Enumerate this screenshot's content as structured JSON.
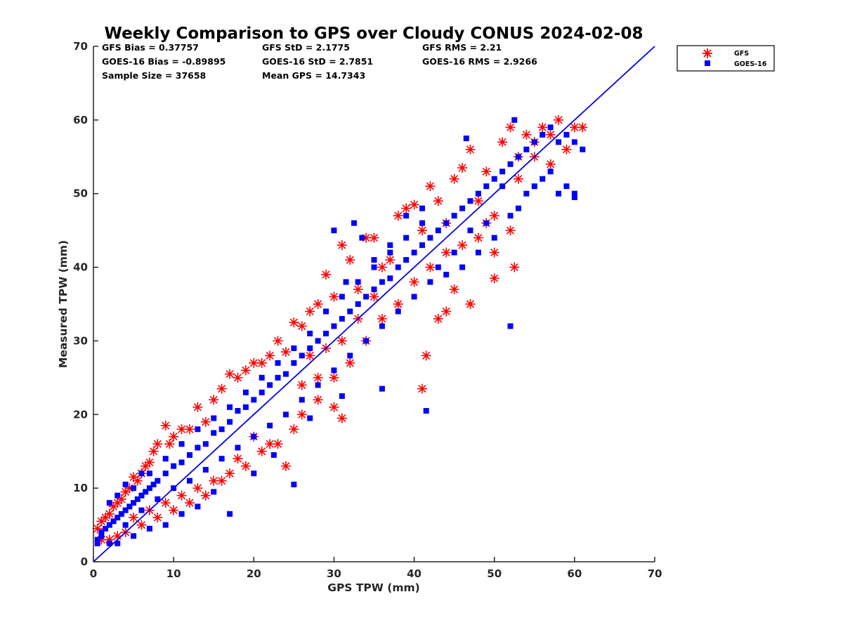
{
  "chart_data": {
    "type": "scatter",
    "title": "Weekly Comparison to GPS over Cloudy CONUS 2024-02-08",
    "xlabel": "GPS TPW (mm)",
    "ylabel": "Measured TPW (mm)",
    "xlim": [
      0,
      70
    ],
    "ylim": [
      0,
      70
    ],
    "xticks": [
      "0",
      "10",
      "20",
      "30",
      "40",
      "50",
      "60",
      "70"
    ],
    "yticks": [
      "0",
      "10",
      "20",
      "30",
      "40",
      "50",
      "60",
      "70"
    ],
    "grid": false,
    "legend_position": "outside-top-right",
    "reference_line": {
      "from": [
        0,
        0
      ],
      "to": [
        70,
        70
      ],
      "color": "#0000ee"
    },
    "stats": [
      "GFS Bias = 0.37757",
      "GFS StD = 2.1775",
      "GFS RMS = 2.21",
      "GOES-16 Bias = -0.89895",
      "GOES-16 StD = 2.7851",
      "GOES-16 RMS = 2.9266",
      "Sample Size = 37658",
      "Mean GPS = 14.7343"
    ],
    "series": [
      {
        "name": "GFS",
        "marker": "asterisk",
        "color": "#ff0000",
        "points": [
          [
            0.5,
            4.5
          ],
          [
            1,
            5.5
          ],
          [
            1.5,
            6
          ],
          [
            2,
            6.5
          ],
          [
            2.5,
            7.5
          ],
          [
            3,
            8
          ],
          [
            3.5,
            8.5
          ],
          [
            4,
            9.5
          ],
          [
            4.5,
            10
          ],
          [
            5,
            11.5
          ],
          [
            5.5,
            11
          ],
          [
            6,
            12
          ],
          [
            6.5,
            13
          ],
          [
            7,
            13.5
          ],
          [
            7.5,
            15
          ],
          [
            8,
            16
          ],
          [
            9,
            18.5
          ],
          [
            9.5,
            16
          ],
          [
            10,
            17
          ],
          [
            11,
            18
          ],
          [
            12,
            18
          ],
          [
            13,
            21
          ],
          [
            14,
            19
          ],
          [
            15,
            22
          ],
          [
            16,
            23.5
          ],
          [
            17,
            25.5
          ],
          [
            18,
            25
          ],
          [
            19,
            26
          ],
          [
            20,
            27
          ],
          [
            21,
            27
          ],
          [
            22,
            28
          ],
          [
            23,
            30
          ],
          [
            24,
            28.5
          ],
          [
            25,
            32.5
          ],
          [
            26,
            32
          ],
          [
            27,
            34
          ],
          [
            28,
            35
          ],
          [
            29,
            39
          ],
          [
            30,
            36
          ],
          [
            31,
            43
          ],
          [
            32,
            41
          ],
          [
            33,
            37
          ],
          [
            34,
            44
          ],
          [
            35,
            44
          ],
          [
            36,
            40
          ],
          [
            37,
            41
          ],
          [
            38,
            47
          ],
          [
            39,
            48
          ],
          [
            40,
            48.5
          ],
          [
            41,
            45
          ],
          [
            42,
            51
          ],
          [
            43,
            49
          ],
          [
            44,
            46
          ],
          [
            45,
            52
          ],
          [
            46,
            53.5
          ],
          [
            47,
            56
          ],
          [
            48,
            49
          ],
          [
            49,
            53
          ],
          [
            50,
            47
          ],
          [
            51,
            57
          ],
          [
            52,
            59
          ],
          [
            53,
            55
          ],
          [
            54,
            58
          ],
          [
            55,
            57
          ],
          [
            56,
            59
          ],
          [
            57,
            54
          ],
          [
            58,
            60
          ],
          [
            59,
            56
          ],
          [
            60,
            59
          ],
          [
            61,
            59
          ],
          [
            52,
            45
          ],
          [
            52.5,
            40
          ],
          [
            50,
            38.5
          ],
          [
            49,
            46
          ],
          [
            47,
            35
          ],
          [
            45,
            37
          ],
          [
            44,
            34
          ],
          [
            43,
            33
          ],
          [
            41,
            23.5
          ],
          [
            41.5,
            28
          ],
          [
            31,
            19.5
          ],
          [
            30,
            21
          ],
          [
            28,
            25
          ],
          [
            26,
            24
          ],
          [
            24,
            13
          ],
          [
            22,
            16
          ],
          [
            20,
            17
          ],
          [
            18,
            14
          ],
          [
            16,
            11
          ],
          [
            14,
            9
          ],
          [
            12,
            8
          ],
          [
            10,
            7
          ],
          [
            8,
            6
          ],
          [
            6,
            5
          ],
          [
            4,
            4
          ],
          [
            3,
            3.5
          ],
          [
            2,
            3
          ],
          [
            1,
            3
          ],
          [
            40,
            38
          ],
          [
            36,
            33
          ],
          [
            34,
            30
          ],
          [
            32,
            27
          ],
          [
            30,
            25
          ],
          [
            28,
            22
          ],
          [
            26,
            20
          ],
          [
            25,
            18
          ],
          [
            23,
            16
          ],
          [
            21,
            15
          ],
          [
            19,
            13
          ],
          [
            17,
            12
          ],
          [
            15,
            11
          ],
          [
            13,
            10
          ],
          [
            11,
            9
          ],
          [
            9,
            8
          ],
          [
            7,
            7
          ],
          [
            5,
            6
          ],
          [
            38,
            35
          ],
          [
            44,
            42
          ],
          [
            48,
            44
          ],
          [
            50,
            42
          ],
          [
            53,
            52
          ],
          [
            55,
            55
          ],
          [
            57,
            58
          ],
          [
            46,
            43
          ],
          [
            42,
            40
          ],
          [
            35,
            36
          ],
          [
            33,
            33
          ],
          [
            29,
            29
          ],
          [
            27,
            28
          ],
          [
            31,
            30
          ]
        ]
      },
      {
        "name": "GOES-16",
        "marker": "square",
        "color": "#0000ff",
        "points": [
          [
            0.5,
            3
          ],
          [
            1,
            4
          ],
          [
            1.5,
            4.5
          ],
          [
            2,
            5
          ],
          [
            2.5,
            5.5
          ],
          [
            3,
            6
          ],
          [
            3.5,
            6.5
          ],
          [
            4,
            7
          ],
          [
            4.5,
            7.5
          ],
          [
            5,
            8
          ],
          [
            5.5,
            8.5
          ],
          [
            6,
            9
          ],
          [
            6.5,
            9.5
          ],
          [
            7,
            10
          ],
          [
            7.5,
            10.5
          ],
          [
            8,
            11
          ],
          [
            9,
            12
          ],
          [
            10,
            13
          ],
          [
            11,
            13.5
          ],
          [
            12,
            14.5
          ],
          [
            13,
            15.5
          ],
          [
            14,
            16
          ],
          [
            15,
            17.5
          ],
          [
            16,
            18
          ],
          [
            17,
            19
          ],
          [
            18,
            20.5
          ],
          [
            19,
            21
          ],
          [
            20,
            22
          ],
          [
            21,
            23
          ],
          [
            22,
            24
          ],
          [
            23,
            25
          ],
          [
            24,
            25.5
          ],
          [
            25,
            27
          ],
          [
            26,
            28
          ],
          [
            27,
            29
          ],
          [
            28,
            30
          ],
          [
            29,
            31
          ],
          [
            30,
            32
          ],
          [
            31,
            33
          ],
          [
            32,
            34
          ],
          [
            33,
            35
          ],
          [
            34,
            36
          ],
          [
            35,
            37
          ],
          [
            36,
            38
          ],
          [
            37,
            38.5
          ],
          [
            38,
            40
          ],
          [
            39,
            41
          ],
          [
            40,
            42
          ],
          [
            41,
            43
          ],
          [
            42,
            44
          ],
          [
            43,
            45
          ],
          [
            44,
            46
          ],
          [
            45,
            47
          ],
          [
            46,
            48
          ],
          [
            47,
            49
          ],
          [
            48,
            50
          ],
          [
            49,
            51
          ],
          [
            50,
            52
          ],
          [
            51,
            53
          ],
          [
            52,
            54
          ],
          [
            53,
            55
          ],
          [
            54,
            56
          ],
          [
            55,
            57
          ],
          [
            56,
            58
          ],
          [
            57,
            59
          ],
          [
            58,
            57
          ],
          [
            59,
            58
          ],
          [
            60,
            57
          ],
          [
            61,
            56
          ],
          [
            52.5,
            60
          ],
          [
            46.5,
            57.5
          ],
          [
            52,
            32
          ],
          [
            41.5,
            20.5
          ],
          [
            36,
            23.5
          ],
          [
            31,
            22.5
          ],
          [
            27,
            19.5
          ],
          [
            25,
            10.5
          ],
          [
            22.5,
            14.5
          ],
          [
            20,
            12
          ],
          [
            17,
            6.5
          ],
          [
            15,
            9.5
          ],
          [
            13,
            7.5
          ],
          [
            11,
            6.5
          ],
          [
            9,
            5
          ],
          [
            7,
            4.5
          ],
          [
            5,
            3.5
          ],
          [
            3,
            2.5
          ],
          [
            2,
            2.5
          ],
          [
            1,
            3.5
          ],
          [
            0.5,
            2.5
          ],
          [
            4,
            5
          ],
          [
            6,
            7
          ],
          [
            8,
            8.5
          ],
          [
            10,
            10
          ],
          [
            12,
            11
          ],
          [
            14,
            12.5
          ],
          [
            16,
            14
          ],
          [
            18,
            15.5
          ],
          [
            20,
            17
          ],
          [
            22,
            18.5
          ],
          [
            24,
            20
          ],
          [
            26,
            22
          ],
          [
            28,
            24
          ],
          [
            30,
            26
          ],
          [
            32,
            28
          ],
          [
            34,
            30
          ],
          [
            36,
            32
          ],
          [
            38,
            34
          ],
          [
            40,
            36
          ],
          [
            42,
            38
          ],
          [
            44,
            39
          ],
          [
            46,
            40
          ],
          [
            48,
            42
          ],
          [
            50,
            44
          ],
          [
            52,
            47
          ],
          [
            54,
            50
          ],
          [
            56,
            52
          ],
          [
            58,
            50
          ],
          [
            60,
            49.5
          ],
          [
            60,
            50
          ],
          [
            32.5,
            46
          ],
          [
            33.5,
            44
          ],
          [
            30,
            45
          ],
          [
            31.5,
            38
          ],
          [
            35,
            41
          ],
          [
            37,
            43
          ],
          [
            39,
            47
          ],
          [
            41,
            48
          ],
          [
            43,
            40
          ],
          [
            45,
            42
          ],
          [
            47,
            45
          ],
          [
            49,
            46
          ],
          [
            51,
            51
          ],
          [
            53,
            48
          ],
          [
            55,
            51
          ],
          [
            57,
            53
          ],
          [
            59,
            51
          ],
          [
            3,
            9
          ],
          [
            4,
            10.5
          ],
          [
            6,
            12
          ],
          [
            2,
            8
          ],
          [
            5,
            10
          ],
          [
            7,
            12
          ],
          [
            9,
            14
          ],
          [
            11,
            16
          ],
          [
            13,
            18
          ],
          [
            15,
            19.5
          ],
          [
            17,
            21
          ],
          [
            19,
            23
          ],
          [
            21,
            25
          ],
          [
            23,
            27
          ],
          [
            25,
            29
          ],
          [
            27,
            31
          ],
          [
            29,
            34
          ],
          [
            31,
            36
          ],
          [
            33,
            38
          ],
          [
            35,
            40
          ],
          [
            37,
            42
          ],
          [
            39,
            44
          ],
          [
            41,
            46
          ]
        ]
      }
    ]
  }
}
